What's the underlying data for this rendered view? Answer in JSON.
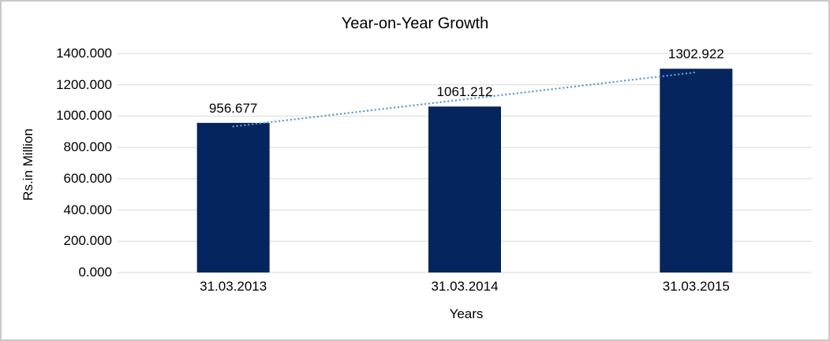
{
  "chart": {
    "title": "Year-on-Year Growth",
    "xlabel": "Years",
    "ylabel": "Rs.in Million"
  },
  "chart_data": {
    "type": "bar",
    "title": "Year-on-Year Growth",
    "xlabel": "Years",
    "ylabel": "Rs.in Million",
    "categories": [
      "31.03.2013",
      "31.03.2014",
      "31.03.2015"
    ],
    "values": [
      956.677,
      1061.212,
      1302.922
    ],
    "data_labels": [
      "956.677",
      "1061.212",
      "1302.922"
    ],
    "ylim": [
      0,
      1400
    ],
    "ytick_step": 200,
    "yticks": [
      "0.000",
      "200.000",
      "400.000",
      "600.000",
      "800.000",
      "1000.000",
      "1200.000",
      "1400.000"
    ],
    "grid": true,
    "legend": "none",
    "bar_color": "#05255f",
    "gridline_color": "#d9d9d9",
    "text_color": "#000000",
    "trendline": {
      "type": "linear",
      "style": "dotted",
      "color": "#5b9bd5",
      "fitted_values": [
        933.81,
        1106.94,
        1280.06
      ]
    }
  }
}
